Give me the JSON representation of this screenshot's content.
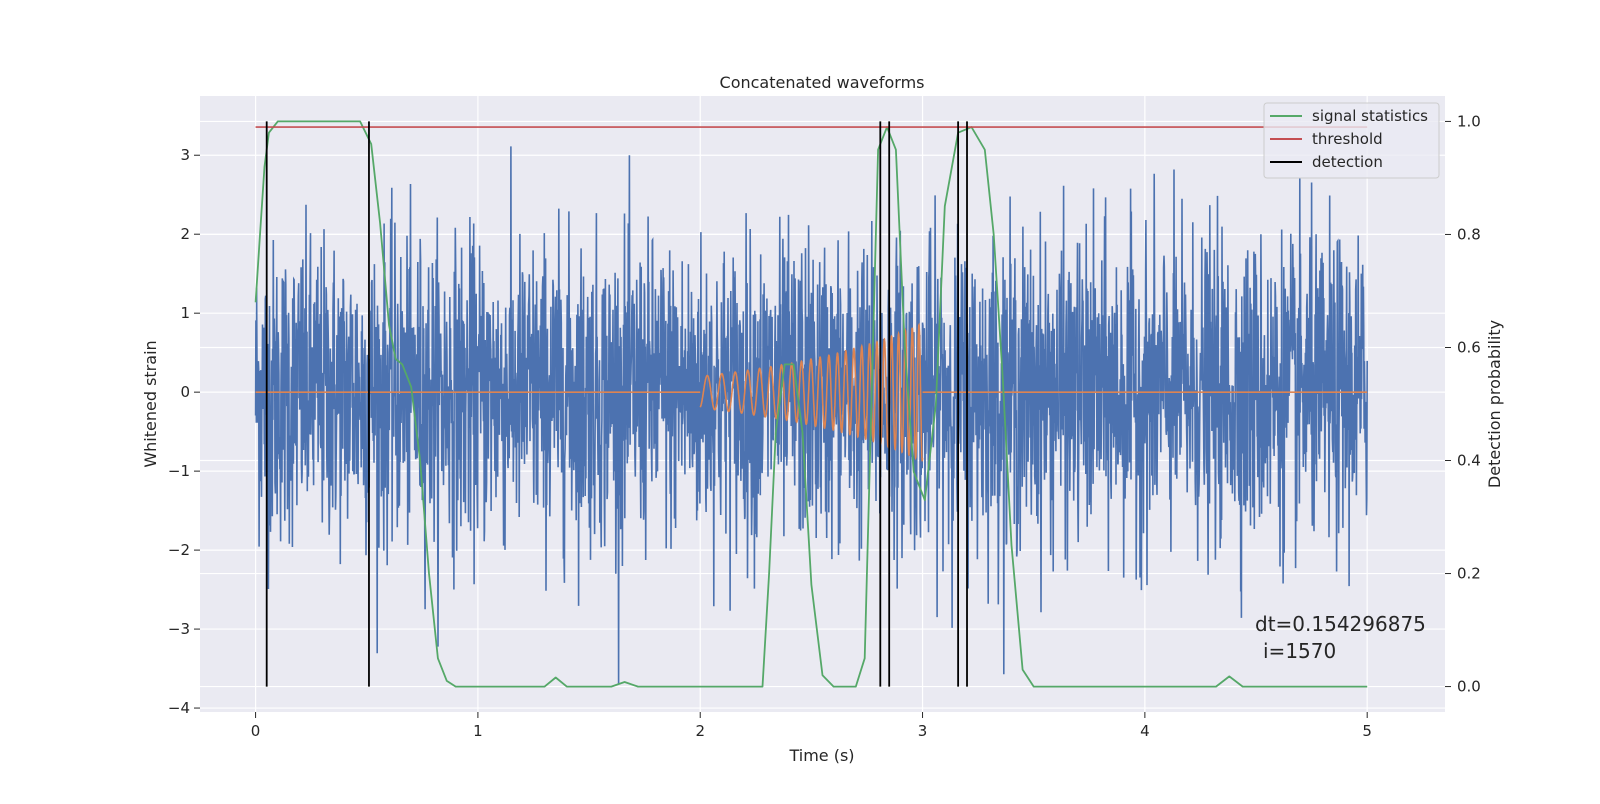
{
  "chart_data": {
    "type": "line",
    "title": "Concatenated waveforms",
    "xlabel": "Time (s)",
    "ylabel": "Whitened strain",
    "ylabel_right": "Detection probability",
    "xlim": [
      -0.25,
      5.35
    ],
    "ylim": [
      -4.05,
      3.75
    ],
    "ylim_right": [
      -0.045,
      1.045
    ],
    "x_ticks": [
      0,
      1,
      2,
      3,
      4,
      5
    ],
    "y_ticks": [
      -4,
      -3,
      -2,
      -1,
      0,
      1,
      2,
      3
    ],
    "y_ticks_right": [
      0.0,
      0.2,
      0.4,
      0.6,
      0.8,
      1.0
    ],
    "x_tick_labels": [
      "0",
      "1",
      "2",
      "3",
      "4",
      "5"
    ],
    "y_tick_labels": [
      "−4",
      "−3",
      "−2",
      "−1",
      "0",
      "1",
      "2",
      "3"
    ],
    "y_tick_labels_right": [
      "0.0",
      "0.2",
      "0.4",
      "0.6",
      "0.8",
      "1.0"
    ],
    "grid": true,
    "legend_position": "top-right",
    "colors": {
      "background": "#eaeaf2",
      "grid": "#ffffff",
      "strain": "#4c72b0",
      "injection": "#dd8452",
      "statistic": "#55a868",
      "threshold": "#c44e52",
      "detection": "#000000"
    },
    "strain": {
      "t_start": 0.0,
      "t_end": 5.0,
      "envelope_min": -3.7,
      "envelope_max": 3.4
    },
    "injection": {
      "t_start": 2.0,
      "t_end": 3.0,
      "points": [
        [
          2.0,
          0.2
        ],
        [
          2.2,
          0.27
        ],
        [
          2.4,
          0.36
        ],
        [
          2.6,
          0.48
        ],
        [
          2.8,
          0.64
        ],
        [
          2.9,
          0.75
        ],
        [
          3.0,
          0.87
        ]
      ]
    },
    "threshold": {
      "value": 0.99,
      "x_start": 0.0,
      "x_end": 5.0
    },
    "detections": [
      0.05,
      0.51,
      2.81,
      2.85,
      3.16,
      3.2
    ],
    "signal_statistics": [
      [
        0.0,
        0.68
      ],
      [
        0.02,
        0.8
      ],
      [
        0.04,
        0.92
      ],
      [
        0.06,
        0.98
      ],
      [
        0.1,
        1.0
      ],
      [
        0.3,
        1.0
      ],
      [
        0.47,
        1.0
      ],
      [
        0.52,
        0.96
      ],
      [
        0.56,
        0.82
      ],
      [
        0.6,
        0.64
      ],
      [
        0.63,
        0.58
      ],
      [
        0.66,
        0.57
      ],
      [
        0.7,
        0.53
      ],
      [
        0.74,
        0.4
      ],
      [
        0.78,
        0.2
      ],
      [
        0.82,
        0.05
      ],
      [
        0.86,
        0.01
      ],
      [
        0.9,
        0.0
      ],
      [
        1.3,
        0.0
      ],
      [
        1.35,
        0.016
      ],
      [
        1.4,
        0.0
      ],
      [
        1.6,
        0.0
      ],
      [
        1.66,
        0.008
      ],
      [
        1.72,
        0.0
      ],
      [
        2.28,
        0.0
      ],
      [
        2.31,
        0.2
      ],
      [
        2.34,
        0.45
      ],
      [
        2.38,
        0.57
      ],
      [
        2.42,
        0.57
      ],
      [
        2.46,
        0.45
      ],
      [
        2.5,
        0.18
      ],
      [
        2.55,
        0.02
      ],
      [
        2.6,
        0.0
      ],
      [
        2.7,
        0.0
      ],
      [
        2.74,
        0.05
      ],
      [
        2.77,
        0.5
      ],
      [
        2.8,
        0.95
      ],
      [
        2.84,
        0.99
      ],
      [
        2.88,
        0.95
      ],
      [
        2.92,
        0.6
      ],
      [
        2.96,
        0.38
      ],
      [
        3.01,
        0.33
      ],
      [
        3.06,
        0.5
      ],
      [
        3.1,
        0.85
      ],
      [
        3.16,
        0.98
      ],
      [
        3.22,
        0.99
      ],
      [
        3.28,
        0.95
      ],
      [
        3.32,
        0.8
      ],
      [
        3.36,
        0.55
      ],
      [
        3.4,
        0.25
      ],
      [
        3.45,
        0.03
      ],
      [
        3.5,
        0.0
      ],
      [
        4.32,
        0.0
      ],
      [
        4.38,
        0.018
      ],
      [
        4.44,
        0.0
      ],
      [
        5.0,
        0.0
      ]
    ],
    "legend": [
      "signal statistics",
      "threshold",
      "detection"
    ],
    "annotation": {
      "dt": "dt=0.154296875",
      "i": "i=1570"
    }
  }
}
